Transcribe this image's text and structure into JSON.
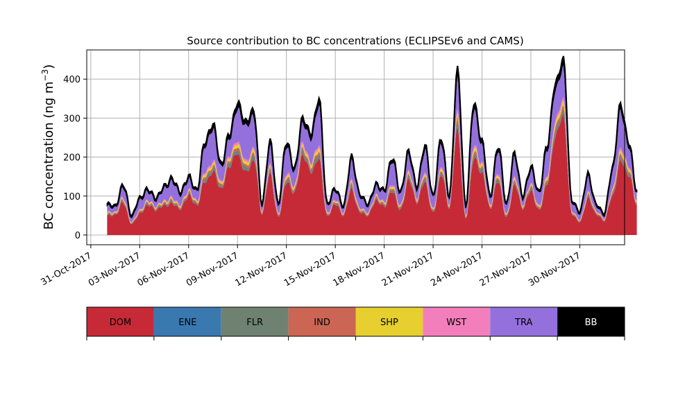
{
  "chart_data": {
    "type": "area",
    "stacked": true,
    "title": "Source contribution to BC concentrations (ECLIPSEv6 and CAMS)",
    "ylabel_main": "BC concentration (ng m",
    "ylabel_sup": "−3",
    "ylabel_close": ")",
    "ylim": [
      -25,
      475
    ],
    "yticks": [
      0,
      100,
      200,
      300,
      400
    ],
    "x_start": "2017-11-01",
    "x_range_days": [
      -0.25,
      32.75
    ],
    "x_ticks": [
      {
        "day": 0,
        "label": "31-Oct-2017"
      },
      {
        "day": 3,
        "label": "03-Nov-2017"
      },
      {
        "day": 6,
        "label": "06-Nov-2017"
      },
      {
        "day": 9,
        "label": "09-Nov-2017"
      },
      {
        "day": 12,
        "label": "12-Nov-2017"
      },
      {
        "day": 15,
        "label": "15-Nov-2017"
      },
      {
        "day": 18,
        "label": "18-Nov-2017"
      },
      {
        "day": 21,
        "label": "21-Nov-2017"
      },
      {
        "day": 24,
        "label": "24-Nov-2017"
      },
      {
        "day": 27,
        "label": "27-Nov-2017"
      },
      {
        "day": 30,
        "label": "30-Nov-2017"
      }
    ],
    "grid": true,
    "series_colors": {
      "DOM": "#c62a37",
      "ENE": "#3a78b0",
      "FLR": "#6f8272",
      "IND": "#cc6654",
      "SHP": "#e6cf2e",
      "WST": "#f27fbc",
      "TRA": "#9370db",
      "BB": "#000000"
    },
    "legend": [
      {
        "name": "DOM",
        "color": "#c62a37",
        "text_color": "#000000"
      },
      {
        "name": "ENE",
        "color": "#3a78b0",
        "text_color": "#000000"
      },
      {
        "name": "FLR",
        "color": "#6f8272",
        "text_color": "#000000"
      },
      {
        "name": "IND",
        "color": "#cc6654",
        "text_color": "#000000"
      },
      {
        "name": "SHP",
        "color": "#e6cf2e",
        "text_color": "#000000"
      },
      {
        "name": "WST",
        "color": "#f27fbc",
        "text_color": "#000000"
      },
      {
        "name": "TRA",
        "color": "#9370db",
        "text_color": "#000000"
      },
      {
        "name": "BB",
        "color": "#000000",
        "text_color": "#ffffff"
      }
    ],
    "legend_position": "below plot",
    "total_keypoints": [
      [
        "2017-11-01 00:00",
        80
      ],
      [
        "2017-11-01 12:00",
        75
      ],
      [
        "2017-11-02 00:00",
        130
      ],
      [
        "2017-11-02 12:00",
        50
      ],
      [
        "2017-11-03 00:00",
        95
      ],
      [
        "2017-11-03 12:00",
        118
      ],
      [
        "2017-11-04 00:00",
        95
      ],
      [
        "2017-11-04 12:00",
        125
      ],
      [
        "2017-11-05 00:00",
        145
      ],
      [
        "2017-11-05 12:00",
        110
      ],
      [
        "2017-11-06 00:00",
        150
      ],
      [
        "2017-11-06 12:00",
        115
      ],
      [
        "2017-11-07 00:00",
        240
      ],
      [
        "2017-11-07 12:00",
        285
      ],
      [
        "2017-11-08 00:00",
        180
      ],
      [
        "2017-11-08 12:00",
        260
      ],
      [
        "2017-11-09 00:00",
        340
      ],
      [
        "2017-11-09 12:00",
        290
      ],
      [
        "2017-11-10 00:00",
        320
      ],
      [
        "2017-11-10 12:00",
        80
      ],
      [
        "2017-11-11 00:00",
        240
      ],
      [
        "2017-11-11 12:00",
        80
      ],
      [
        "2017-11-12 00:00",
        240
      ],
      [
        "2017-11-12 12:00",
        170
      ],
      [
        "2017-11-13 00:00",
        300
      ],
      [
        "2017-11-13 12:00",
        260
      ],
      [
        "2017-11-14 00:00",
        350
      ],
      [
        "2017-11-14 12:00",
        80
      ],
      [
        "2017-11-15 00:00",
        120
      ],
      [
        "2017-11-15 12:00",
        75
      ],
      [
        "2017-11-16 00:00",
        200
      ],
      [
        "2017-11-16 12:00",
        105
      ],
      [
        "2017-11-17 00:00",
        80
      ],
      [
        "2017-11-17 12:00",
        130
      ],
      [
        "2017-11-18 00:00",
        115
      ],
      [
        "2017-11-18 12:00",
        200
      ],
      [
        "2017-11-19 00:00",
        110
      ],
      [
        "2017-11-19 12:00",
        215
      ],
      [
        "2017-11-20 00:00",
        125
      ],
      [
        "2017-11-20 12:00",
        230
      ],
      [
        "2017-11-21 00:00",
        100
      ],
      [
        "2017-11-21 12:00",
        250
      ],
      [
        "2017-11-22 00:00",
        100
      ],
      [
        "2017-11-22 12:00",
        425
      ],
      [
        "2017-11-23 00:00",
        75
      ],
      [
        "2017-11-23 12:00",
        340
      ],
      [
        "2017-11-24 00:00",
        240
      ],
      [
        "2017-11-24 12:00",
        100
      ],
      [
        "2017-11-25 00:00",
        230
      ],
      [
        "2017-11-25 12:00",
        80
      ],
      [
        "2017-11-26 00:00",
        210
      ],
      [
        "2017-11-26 12:00",
        100
      ],
      [
        "2017-11-27 00:00",
        175
      ],
      [
        "2017-11-27 12:00",
        110
      ],
      [
        "2017-11-28 00:00",
        230
      ],
      [
        "2017-11-28 12:00",
        390
      ],
      [
        "2017-11-29 00:00",
        450
      ],
      [
        "2017-11-29 12:00",
        90
      ],
      [
        "2017-11-30 00:00",
        60
      ],
      [
        "2017-11-30 12:00",
        155
      ],
      [
        "2017-12-01 00:00",
        80
      ],
      [
        "2017-12-01 12:00",
        55
      ],
      [
        "2017-12-02 00:00",
        170
      ],
      [
        "2017-12-02 12:00",
        335
      ],
      [
        "2017-12-03 00:00",
        240
      ],
      [
        "2017-12-03 12:00",
        115
      ]
    ],
    "dom_fraction_approx": 0.62
  }
}
